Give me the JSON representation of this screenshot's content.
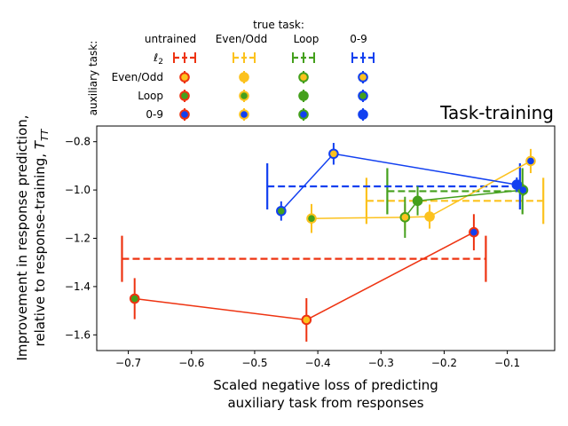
{
  "chart_data": {
    "type": "scatter",
    "title": "Task-training",
    "xlabel_lines": [
      "Scaled negative loss of predicting",
      "auxiliary task from responses"
    ],
    "ylabel_lines": [
      "Improvement in response prediction,",
      "relative to response-training, T_TT"
    ],
    "xlim": [
      -0.75,
      -0.025
    ],
    "ylim": [
      -1.665,
      -0.735
    ],
    "xticks": [
      -0.7,
      -0.6,
      -0.5,
      -0.4,
      -0.3,
      -0.2,
      -0.1
    ],
    "yticks": [
      -1.6,
      -1.4,
      -1.2,
      -1.0,
      -0.8
    ],
    "grid": false,
    "colors": {
      "untrained": "#ee3311",
      "evenodd": "#fcc21e",
      "loop": "#44a01c",
      "zero9": "#1240f0"
    },
    "legend": {
      "true_task_header": "true task:",
      "aux_task_header": "auxiliary task:",
      "columns": [
        {
          "label": "untrained",
          "key": "untrained"
        },
        {
          "label": "Even/Odd",
          "key": "evenodd"
        },
        {
          "label": "Loop",
          "key": "loop"
        },
        {
          "label": "0-9",
          "key": "zero9"
        }
      ],
      "rows": [
        {
          "label": "ℓ2",
          "key": "l2"
        },
        {
          "label": "Even/Odd",
          "key": "evenodd"
        },
        {
          "label": "Loop",
          "key": "loop"
        },
        {
          "label": "0-9",
          "key": "zero9"
        }
      ]
    },
    "baselines": [
      {
        "series": "untrained",
        "x": -0.422,
        "xerr": 0.288,
        "y": -1.285
      },
      {
        "series": "evenodd",
        "x": -0.183,
        "xerr": 0.14,
        "y": -1.045
      },
      {
        "series": "loop",
        "x": -0.183,
        "xerr": 0.107,
        "y": -1.005
      },
      {
        "series": "zero9",
        "x": -0.28,
        "xerr": 0.2,
        "y": -0.985
      }
    ],
    "series": [
      {
        "key": "untrained",
        "points": [
          {
            "aux": "loop",
            "x": -0.69,
            "y": -1.45,
            "yerr": 0.085
          },
          {
            "aux": "evenodd",
            "x": -0.418,
            "y": -1.538,
            "yerr": 0.09
          },
          {
            "aux": "zero9",
            "x": -0.153,
            "y": -1.175,
            "yerr": 0.075
          }
        ]
      },
      {
        "key": "evenodd",
        "points": [
          {
            "aux": "loop",
            "x": -0.41,
            "y": -1.118,
            "yerr": 0.06
          },
          {
            "aux": "loop",
            "x": -0.262,
            "y": -1.113,
            "yerr": 0.055
          },
          {
            "aux": "evenodd",
            "x": -0.223,
            "y": -1.11,
            "yerr": 0.05
          },
          {
            "aux": "zero9",
            "x": -0.063,
            "y": -0.88,
            "yerr": 0.05
          }
        ]
      },
      {
        "key": "loop",
        "points": [
          {
            "aux": "evenodd",
            "x": -0.262,
            "y": -1.113,
            "yerr": 0.085
          },
          {
            "aux": "loop",
            "x": -0.242,
            "y": -1.045,
            "yerr": 0.06
          },
          {
            "aux": "zero9",
            "x": -0.075,
            "y": -1.0,
            "yerr": 0.025
          }
        ]
      },
      {
        "key": "zero9",
        "points": [
          {
            "aux": "loop",
            "x": -0.458,
            "y": -1.087,
            "yerr": 0.04
          },
          {
            "aux": "evenodd",
            "x": -0.375,
            "y": -0.85,
            "yerr": 0.045
          },
          {
            "aux": "zero9",
            "x": -0.085,
            "y": -0.978,
            "yerr": 0.03
          }
        ]
      }
    ]
  }
}
